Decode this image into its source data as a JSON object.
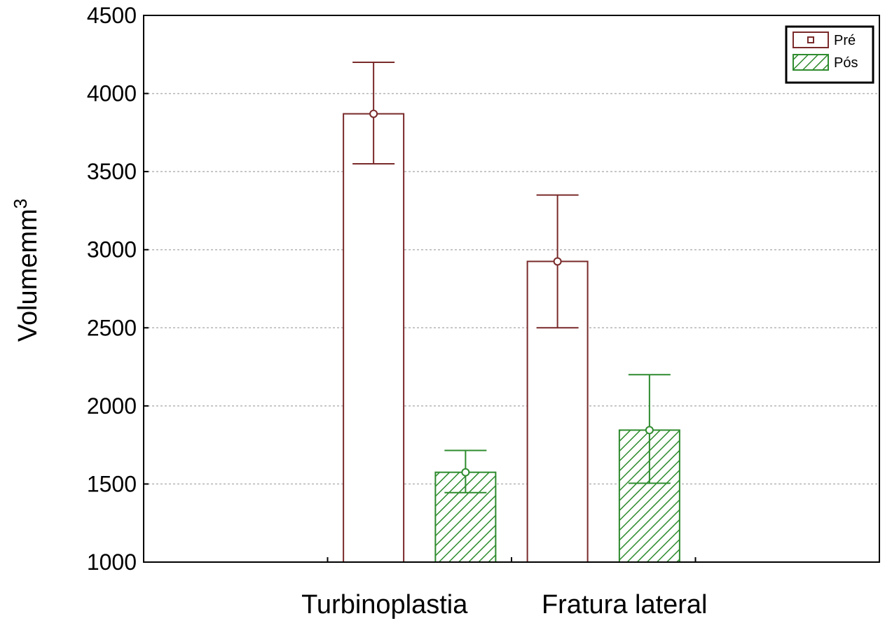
{
  "chart_data": {
    "type": "bar",
    "categories": [
      "Turbinoplastia",
      "Fratura lateral"
    ],
    "series": [
      {
        "name": "Pré",
        "values": [
          3870,
          2925
        ],
        "error_low": [
          3550,
          2500
        ],
        "error_high": [
          4200,
          3350
        ],
        "color": "#7a2a2a",
        "fill": "none"
      },
      {
        "name": "Pós",
        "values": [
          1575,
          1845
        ],
        "error_low": [
          1445,
          1505
        ],
        "error_high": [
          1715,
          2200
        ],
        "color": "#2e8b2e",
        "fill": "hatch"
      }
    ],
    "title": "",
    "xlabel": "",
    "ylabel": "Volumemm",
    "ylabel_superscript": "3",
    "ylim": [
      1000,
      4500
    ],
    "yticks": [
      1000,
      1500,
      2000,
      2500,
      3000,
      3500,
      4000,
      4500
    ],
    "grid": "horizontal-dotted",
    "legend_position": "top-right"
  }
}
